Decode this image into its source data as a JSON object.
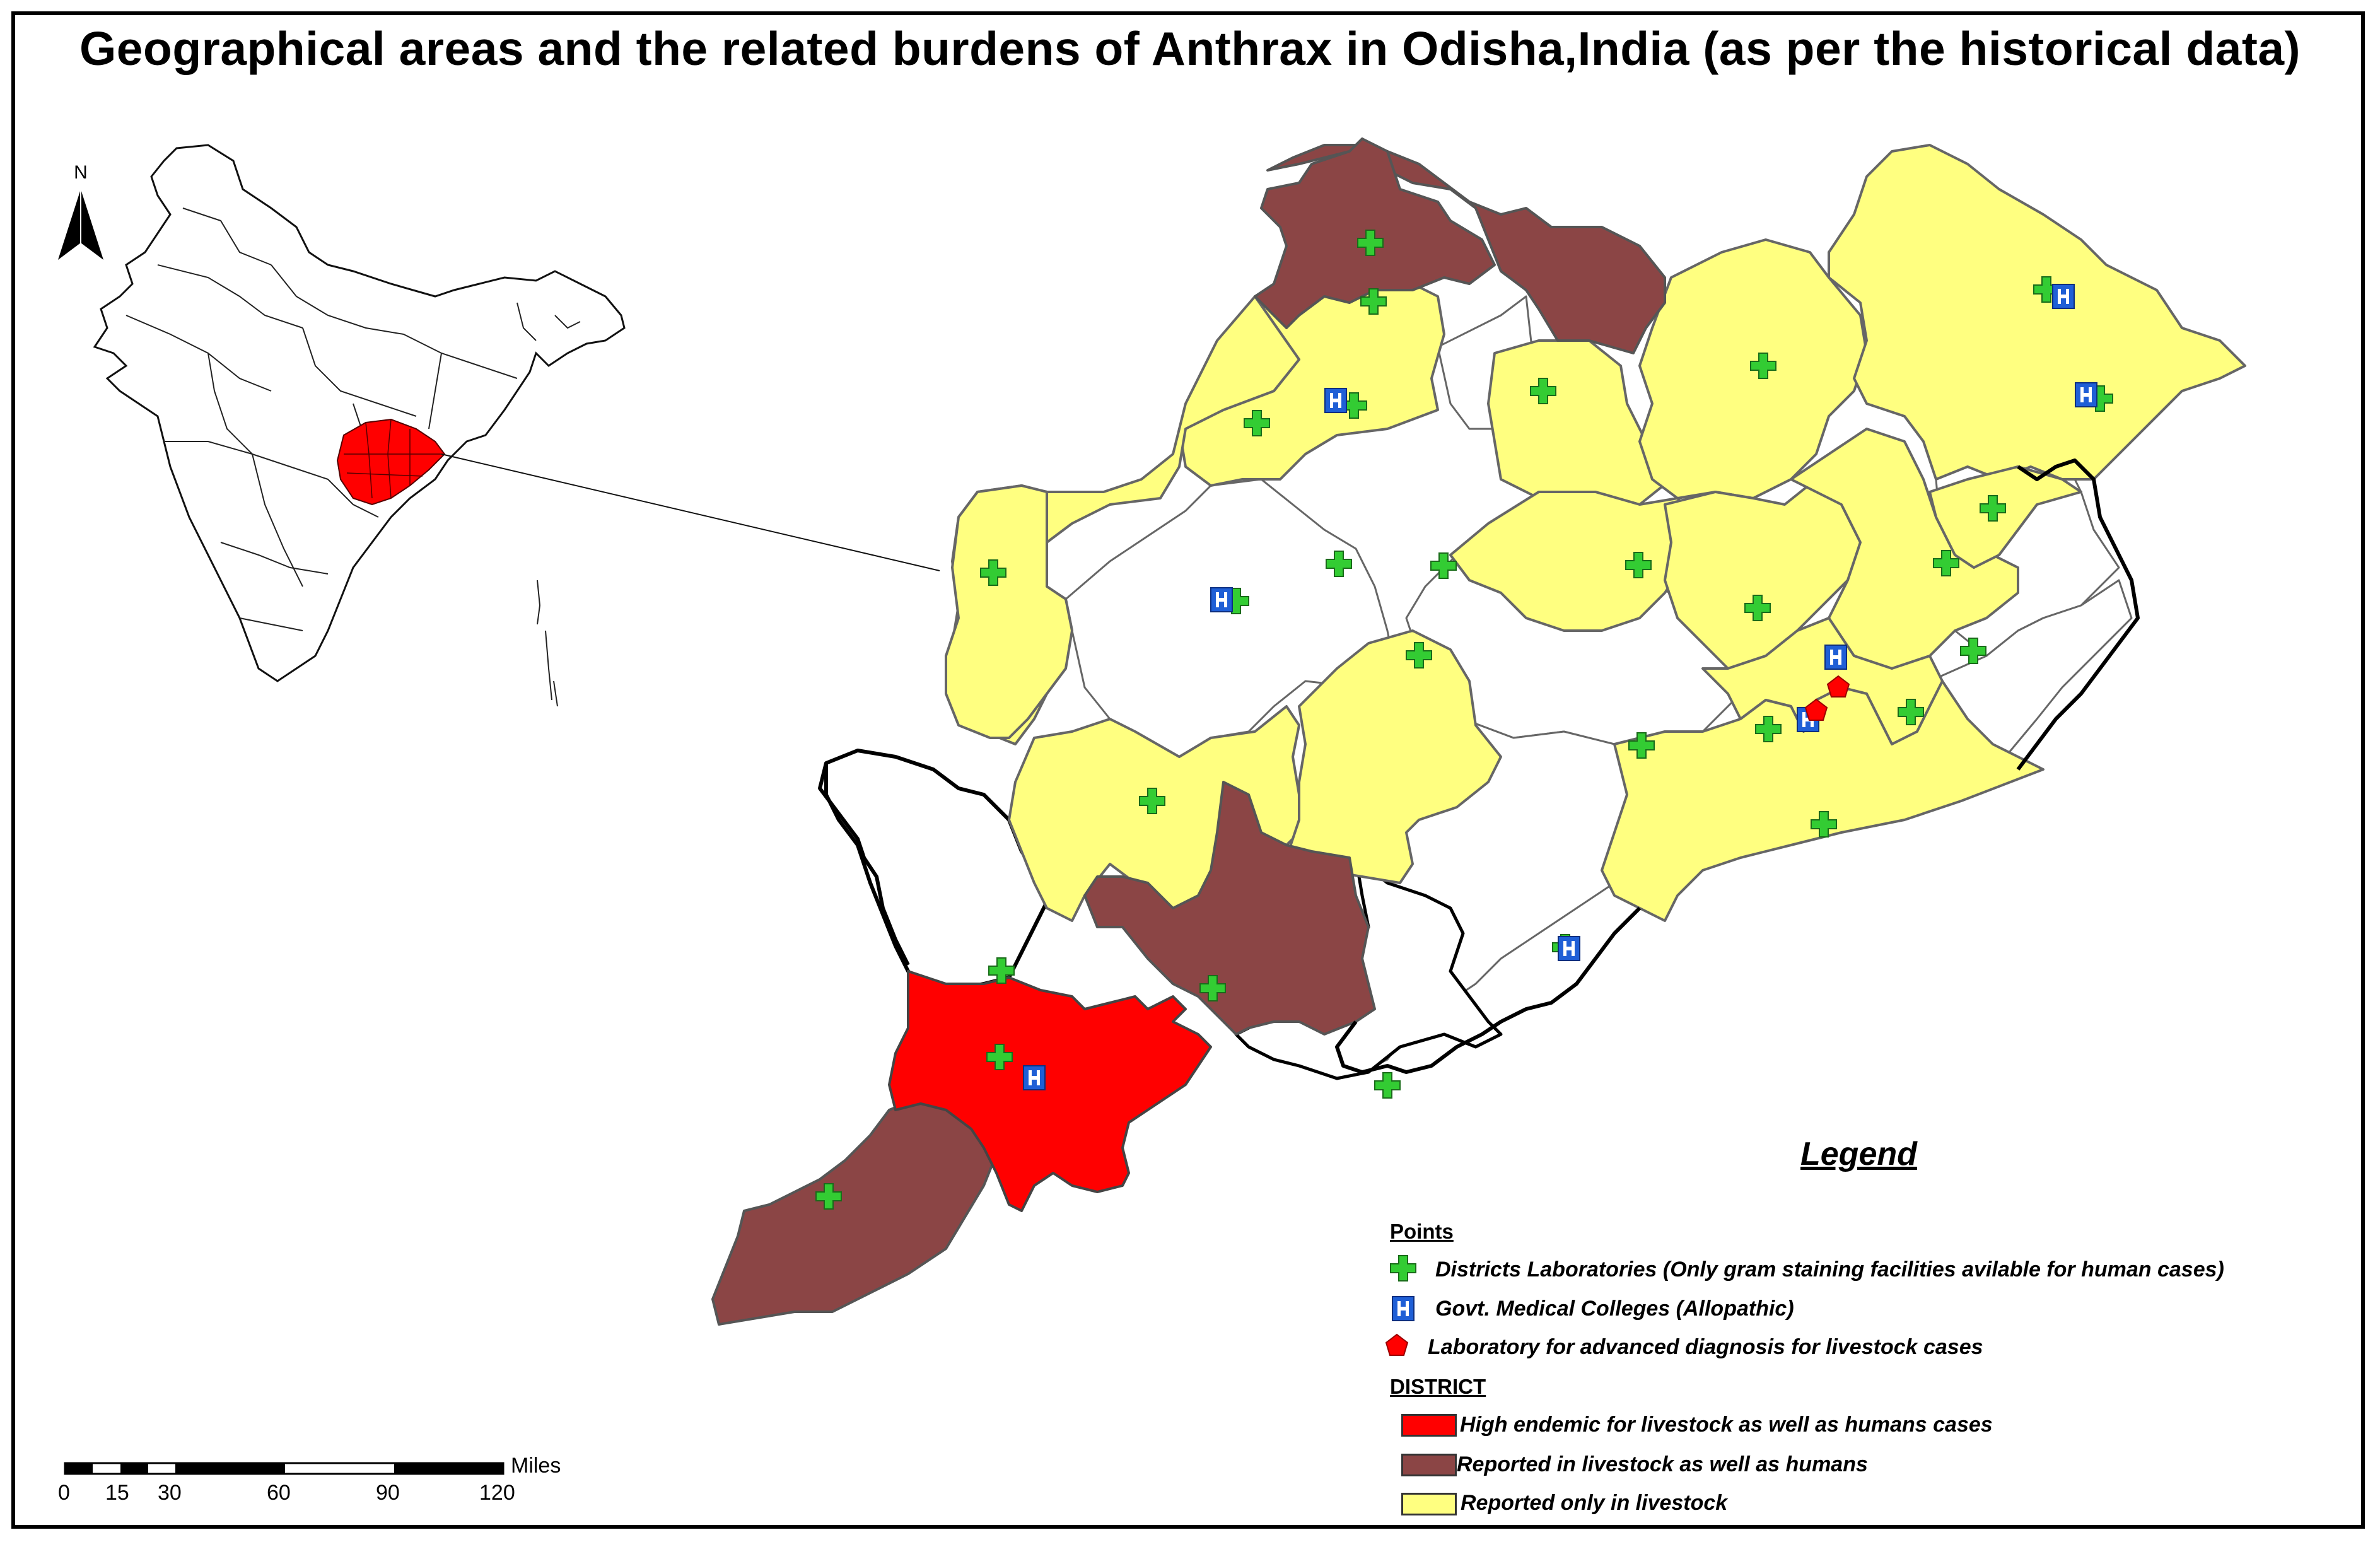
{
  "title": "Geographical areas and the related burdens of Anthrax in Odisha,India (as per the historical data)",
  "north_label": "N",
  "legend": {
    "title": "Legend",
    "points_header": "Points",
    "district_header": "DISTRICT",
    "points": [
      {
        "label": "Districts Laboratories (Only gram staining facilities avilable for human cases)",
        "icon": "green-plus-icon",
        "color": "#33cc33"
      },
      {
        "label": "Govt. Medical Colleges (Allopathic)",
        "icon": "hospital-h-icon",
        "color": "#1f5fd6"
      },
      {
        "label": "Laboratory for advanced diagnosis for livestock cases",
        "icon": "red-pentagon-icon",
        "color": "#ff0000"
      }
    ],
    "districts": [
      {
        "label": "High endemic for livestock as well as humans cases",
        "color": "#ff0000"
      },
      {
        "label": "Reported in livestock as well as humans",
        "color": "#8b4545"
      },
      {
        "label": "Reported only in livestock",
        "color": "#ffff80"
      }
    ]
  },
  "scale_bar": {
    "unit": "Miles",
    "ticks": [
      "0",
      "15",
      "30",
      "60",
      "90",
      "120"
    ]
  },
  "colors": {
    "high_endemic": "#ff0000",
    "livestock_and_humans": "#8b4545",
    "livestock_only": "#ffff80",
    "not_reported": "#ffffff",
    "lab_plus": "#33cc33",
    "medical_college": "#1f5fd6"
  }
}
